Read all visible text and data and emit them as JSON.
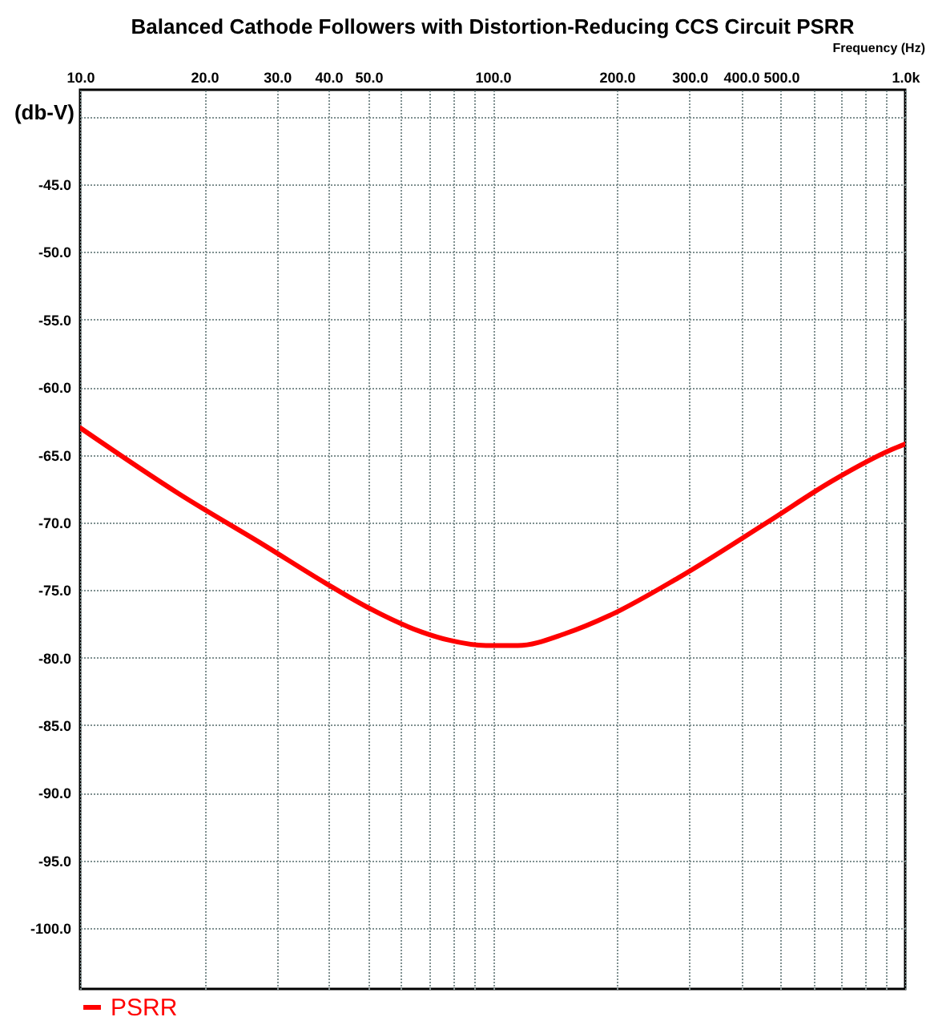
{
  "chart_data": {
    "type": "line",
    "title": "Balanced Cathode Followers with Distortion-Reducing CCS Circuit PSRR",
    "xlabel": "Frequency  (Hz)",
    "ylabel": "(db-V)",
    "x": [
      10,
      17.4,
      28,
      39.4,
      49.2,
      67.3,
      78.2,
      96.4,
      115,
      150.6,
      191.5,
      281.7,
      468,
      668,
      929,
      1000
    ],
    "series": [
      {
        "name": "PSRR",
        "color": "#ff0000",
        "values": [
          -63.0,
          -67.9,
          -71.7,
          -74.5,
          -76.2,
          -78.1,
          -78.7,
          -79.1,
          -79.1,
          -78.2,
          -76.9,
          -74.1,
          -69.9,
          -66.9,
          -64.6,
          -64.2
        ]
      }
    ],
    "log": "x",
    "xlim": [
      10,
      1000
    ],
    "ylim": [
      -104.5,
      -38
    ],
    "xticks": [
      {
        "value": 10,
        "label": "10.0"
      },
      {
        "value": 20,
        "label": "20.0"
      },
      {
        "value": 30,
        "label": "30.0"
      },
      {
        "value": 40,
        "label": "40.0"
      },
      {
        "value": 50,
        "label": "50.0"
      },
      {
        "value": 60,
        "label": null
      },
      {
        "value": 70,
        "label": null
      },
      {
        "value": 80,
        "label": null
      },
      {
        "value": 90,
        "label": null
      },
      {
        "value": 100,
        "label": "100.0"
      },
      {
        "value": 200,
        "label": "200.0"
      },
      {
        "value": 300,
        "label": "300.0"
      },
      {
        "value": 400,
        "label": "400.0"
      },
      {
        "value": 500,
        "label": "500.0"
      },
      {
        "value": 600,
        "label": null
      },
      {
        "value": 700,
        "label": null
      },
      {
        "value": 800,
        "label": null
      },
      {
        "value": 900,
        "label": null
      },
      {
        "value": 1000,
        "label": "1.0k"
      }
    ],
    "yticks": [
      {
        "value": -40,
        "label": null
      },
      {
        "value": -45,
        "label": "-45.0"
      },
      {
        "value": -50,
        "label": "-50.0"
      },
      {
        "value": -55,
        "label": "-55.0"
      },
      {
        "value": -60,
        "label": "-60.0"
      },
      {
        "value": -65,
        "label": "-65.0"
      },
      {
        "value": -70,
        "label": "-70.0"
      },
      {
        "value": -75,
        "label": "-75.0"
      },
      {
        "value": -80,
        "label": "-80.0"
      },
      {
        "value": -85,
        "label": "-85.0"
      },
      {
        "value": -90,
        "label": "-90.0"
      },
      {
        "value": -95,
        "label": "-95.0"
      },
      {
        "value": -100,
        "label": "-100.0"
      }
    ],
    "grid": true,
    "legend": "bottom"
  }
}
